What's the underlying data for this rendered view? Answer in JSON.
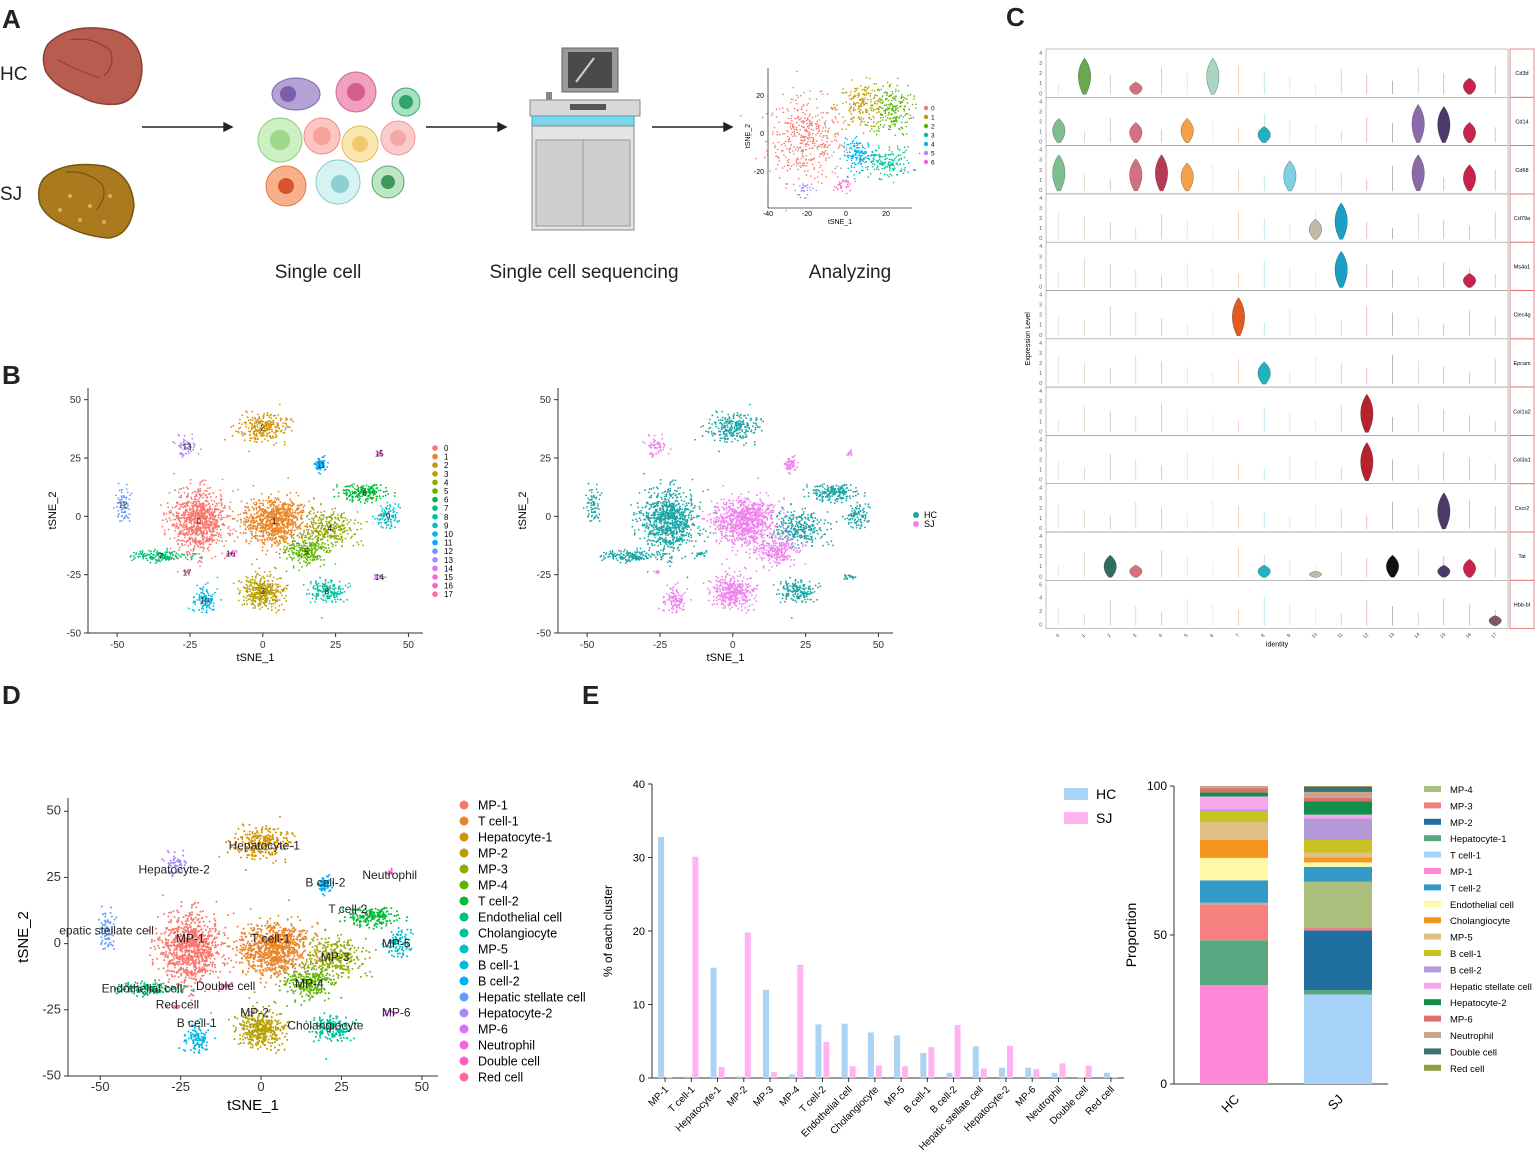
{
  "panels": {
    "a": "A",
    "b": "B",
    "c": "C",
    "d": "D",
    "e": "E"
  },
  "panel_a": {
    "groups": [
      "HC",
      "SJ"
    ],
    "steps": [
      "Single cell",
      "Single cell sequencing",
      "Analyzing"
    ],
    "mini_tsne": {
      "xlabel": "tSNE_1",
      "ylabel": "tSNE_2",
      "xticks": [
        "-40",
        "-20",
        "0",
        "20"
      ],
      "yticks": [
        "20",
        "0",
        "-20"
      ],
      "clusters": [
        "0",
        "1",
        "2",
        "3",
        "4",
        "5",
        "6"
      ],
      "colors": [
        "#f8766d",
        "#c49a00",
        "#53b400",
        "#00c094",
        "#00b6eb",
        "#a58aff",
        "#fb61d7"
      ]
    }
  },
  "panel_b": {
    "xlabel": "tSNE_1",
    "ylabel": "tSNE_2",
    "xticks": [
      "-50",
      "-25",
      "0",
      "25",
      "50"
    ],
    "yticks": [
      "50",
      "25",
      "0",
      "-25",
      "-50"
    ],
    "clusters": [
      "0",
      "1",
      "2",
      "3",
      "4",
      "5",
      "6",
      "7",
      "8",
      "9",
      "10",
      "11",
      "12",
      "13",
      "14",
      "15",
      "16",
      "17"
    ],
    "colors": [
      "#f8766d",
      "#e88526",
      "#d39200",
      "#b79f00",
      "#93aa00",
      "#5eb300",
      "#00ba38",
      "#00bf74",
      "#00c19f",
      "#00bfc4",
      "#00b9e3",
      "#00adfa",
      "#619cff",
      "#ae87ff",
      "#db72fb",
      "#f564e3",
      "#ff61c3",
      "#ff6c91"
    ],
    "groups": [
      "HC",
      "SJ"
    ],
    "group_colors": [
      "#1aa5a5",
      "#ee82ee"
    ]
  },
  "panel_c": {
    "ylabel": "Expression Level",
    "xlabel": "identity",
    "genes": [
      "Cd3d",
      "Cd14",
      "Cd68",
      "Cd79a",
      "Ms4a1",
      "Clec4g",
      "Epcam",
      "Col1a2",
      "Col3a1",
      "Cxcr2",
      "Tat",
      "Hbb-bt"
    ],
    "identities": [
      "0",
      "1",
      "2",
      "3",
      "4",
      "5",
      "6",
      "7",
      "8",
      "9",
      "10",
      "11",
      "12",
      "13",
      "14",
      "15",
      "16",
      "17"
    ],
    "yticks": [
      "0",
      "1",
      "2",
      "3",
      "4"
    ],
    "yticks_hbb": [
      "0",
      "2",
      "4",
      "6"
    ]
  },
  "panel_d": {
    "xlabel": "tSNE_1",
    "ylabel": "tSNE_2",
    "xticks": [
      "-50",
      "-25",
      "0",
      "25",
      "50"
    ],
    "yticks": [
      "50",
      "25",
      "0",
      "-25",
      "-50"
    ],
    "legend": [
      "MP-1",
      "T cell-1",
      "Hepatocyte-1",
      "MP-2",
      "MP-3",
      "MP-4",
      "T cell-2",
      "Endothelial cell",
      "Cholangiocyte",
      "MP-5",
      "B cell-1",
      "B cell-2",
      "Hepatic stellate cell",
      "Hepatocyte-2",
      "MP-6",
      "Neutrophil",
      "Double cell",
      "Red cell"
    ],
    "labels": {
      "hep2": "Hepatocyte-2",
      "hep1": "Hepatocyte-1",
      "bcell2": "B cell-2",
      "neut": "Neutrophil",
      "tcell2": "T cell-2",
      "hsc": "epatic stellate cell",
      "mp1": "MP-1",
      "tcell1": "T cell-1",
      "mp5": "MP-5",
      "mp3": "MP-3",
      "endo": "Endothelial cell",
      "double": "Double cell",
      "mp4": "MP-4",
      "red": "Red cell",
      "mp2": "MP-2",
      "mp6": "MP-6",
      "bcell1": "B cell-1",
      "chol": "Cholangiocyte"
    }
  },
  "chart_data": [
    {
      "type": "bar",
      "title": "",
      "ylabel": "% of each cluster",
      "xlabel": "",
      "ylim": [
        0,
        40
      ],
      "yticks": [
        "0",
        "10",
        "20",
        "30",
        "40"
      ],
      "categories": [
        "MP-1",
        "T cell-1",
        "Hepatocyte-1",
        "MP-2",
        "MP-3",
        "MP-4",
        "T cell-2",
        "Endothelial cell",
        "Cholangiocyte",
        "MP-5",
        "B cell-1",
        "B cell-2",
        "Hepatic stellate cell",
        "Hepatocyte-2",
        "MP-6",
        "Neutrophil",
        "Double cell",
        "Red cell"
      ],
      "series": [
        {
          "name": "HC",
          "color": "#aad4f5",
          "values": [
            32.8,
            0.2,
            15.0,
            0.2,
            12.0,
            0.5,
            7.3,
            7.4,
            6.2,
            5.8,
            3.4,
            0.7,
            4.3,
            1.4,
            1.4,
            0.7,
            0.1,
            0.7
          ]
        },
        {
          "name": "SJ",
          "color": "#ffb3f0",
          "values": [
            0.1,
            30.1,
            1.5,
            19.8,
            0.8,
            15.4,
            4.9,
            1.6,
            1.7,
            1.6,
            4.2,
            7.2,
            1.3,
            4.4,
            1.2,
            2.0,
            1.7,
            0.1
          ]
        }
      ]
    },
    {
      "type": "bar",
      "stacked": true,
      "ylabel": "Proportion",
      "ylim": [
        0,
        100
      ],
      "yticks": [
        "0",
        "50",
        "100"
      ],
      "categories": [
        "HC",
        "SJ"
      ],
      "series": [
        {
          "name": "MP-1",
          "color": "#ff88d8",
          "values": [
            33,
            0
          ]
        },
        {
          "name": "T cell-1",
          "color": "#a7d3fa",
          "values": [
            0,
            30
          ]
        },
        {
          "name": "Hepatocyte-1",
          "color": "#5aa882",
          "values": [
            15,
            1.5
          ]
        },
        {
          "name": "MP-2",
          "color": "#1f6fa0",
          "values": [
            0,
            20
          ]
        },
        {
          "name": "MP-3",
          "color": "#f67f7f",
          "values": [
            12,
            0.8
          ]
        },
        {
          "name": "MP-4",
          "color": "#a9bf7b",
          "values": [
            0.5,
            15.5
          ]
        },
        {
          "name": "T cell-2",
          "color": "#3399c6",
          "values": [
            7.5,
            5
          ]
        },
        {
          "name": "Endothelial cell",
          "color": "#fff8a8",
          "values": [
            7.5,
            1.5
          ]
        },
        {
          "name": "Cholangiocyte",
          "color": "#f7941d",
          "values": [
            6,
            1.7
          ]
        },
        {
          "name": "MP-5",
          "color": "#e0bf87",
          "values": [
            6,
            1.6
          ]
        },
        {
          "name": "B cell-1",
          "color": "#c9c220",
          "values": [
            3.5,
            4.2
          ]
        },
        {
          "name": "B cell-2",
          "color": "#b59ad9",
          "values": [
            0.7,
            7.2
          ]
        },
        {
          "name": "Hepatic stellate cell",
          "color": "#f7a8ec",
          "values": [
            4.3,
            1.3
          ]
        },
        {
          "name": "Hepatocyte-2",
          "color": "#118f4a",
          "values": [
            1.4,
            4.4
          ]
        },
        {
          "name": "MP-6",
          "color": "#e06e6e",
          "values": [
            1.4,
            1.2
          ]
        },
        {
          "name": "Neutrophil",
          "color": "#c9a689",
          "values": [
            0.7,
            2
          ]
        },
        {
          "name": "Double cell",
          "color": "#3d7375",
          "values": [
            0,
            1.7
          ]
        },
        {
          "name": "Red cell",
          "color": "#8f9a47",
          "values": [
            0,
            0.3
          ]
        }
      ],
      "legend_order": [
        "MP-4",
        "MP-3",
        "MP-2",
        "Hepatocyte-1",
        "T cell-1",
        "MP-1",
        "T cell-2",
        "Endothelial cell",
        "Cholangiocyte",
        "MP-5",
        "B cell-1",
        "B cell-2",
        "Hepatic stellate cell",
        "Hepatocyte-2",
        "MP-6",
        "Neutrophil",
        "Double cell",
        "Red cell"
      ]
    }
  ]
}
